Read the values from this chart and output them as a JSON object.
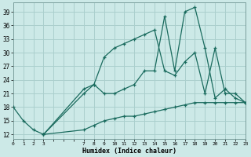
{
  "xlabel": "Humidex (Indice chaleur)",
  "bg_color": "#cce9e7",
  "grid_color": "#aacfcd",
  "line_color": "#1a6b5e",
  "series": [
    {
      "x": [
        0,
        1,
        2,
        3,
        7,
        8,
        9,
        10,
        11,
        12,
        13,
        14,
        15,
        16,
        17,
        18,
        19,
        20,
        21,
        22,
        23
      ],
      "y": [
        18,
        15,
        13,
        12,
        13,
        14,
        15,
        15.5,
        16,
        16,
        16.5,
        17,
        17.5,
        18,
        18.5,
        19,
        19,
        19,
        19,
        19,
        19
      ]
    },
    {
      "x": [
        3,
        7,
        8,
        9,
        10,
        11,
        12,
        13,
        14,
        15,
        16,
        17,
        18,
        19,
        20,
        21,
        22,
        23
      ],
      "y": [
        12,
        21,
        23,
        21,
        21,
        22,
        23,
        26,
        26,
        38,
        26,
        39,
        40,
        31,
        20,
        22,
        20,
        19
      ]
    },
    {
      "x": [
        3,
        7,
        8,
        9,
        10,
        11,
        12,
        13,
        14,
        15,
        16,
        17,
        18,
        19,
        20,
        21,
        22,
        23
      ],
      "y": [
        12,
        22,
        23,
        29,
        31,
        32,
        33,
        34,
        35,
        26,
        25,
        28,
        30,
        21,
        31,
        21,
        21,
        19
      ]
    }
  ],
  "ytick_labels": [
    "12",
    "15",
    "18",
    "21",
    "24",
    "27",
    "30",
    "33",
    "36",
    "39"
  ],
  "ytick_vals": [
    12,
    15,
    18,
    21,
    24,
    27,
    30,
    33,
    36,
    39
  ],
  "xtick_labels": [
    "0",
    "1",
    "2",
    "3",
    "",
    "",
    "",
    "7",
    "8",
    "9",
    "10",
    "11",
    "12",
    "13",
    "14",
    "15",
    "16",
    "17",
    "18",
    "19",
    "20",
    "21",
    "2223"
  ],
  "xlim": [
    0,
    23
  ],
  "ylim": [
    11,
    41
  ]
}
